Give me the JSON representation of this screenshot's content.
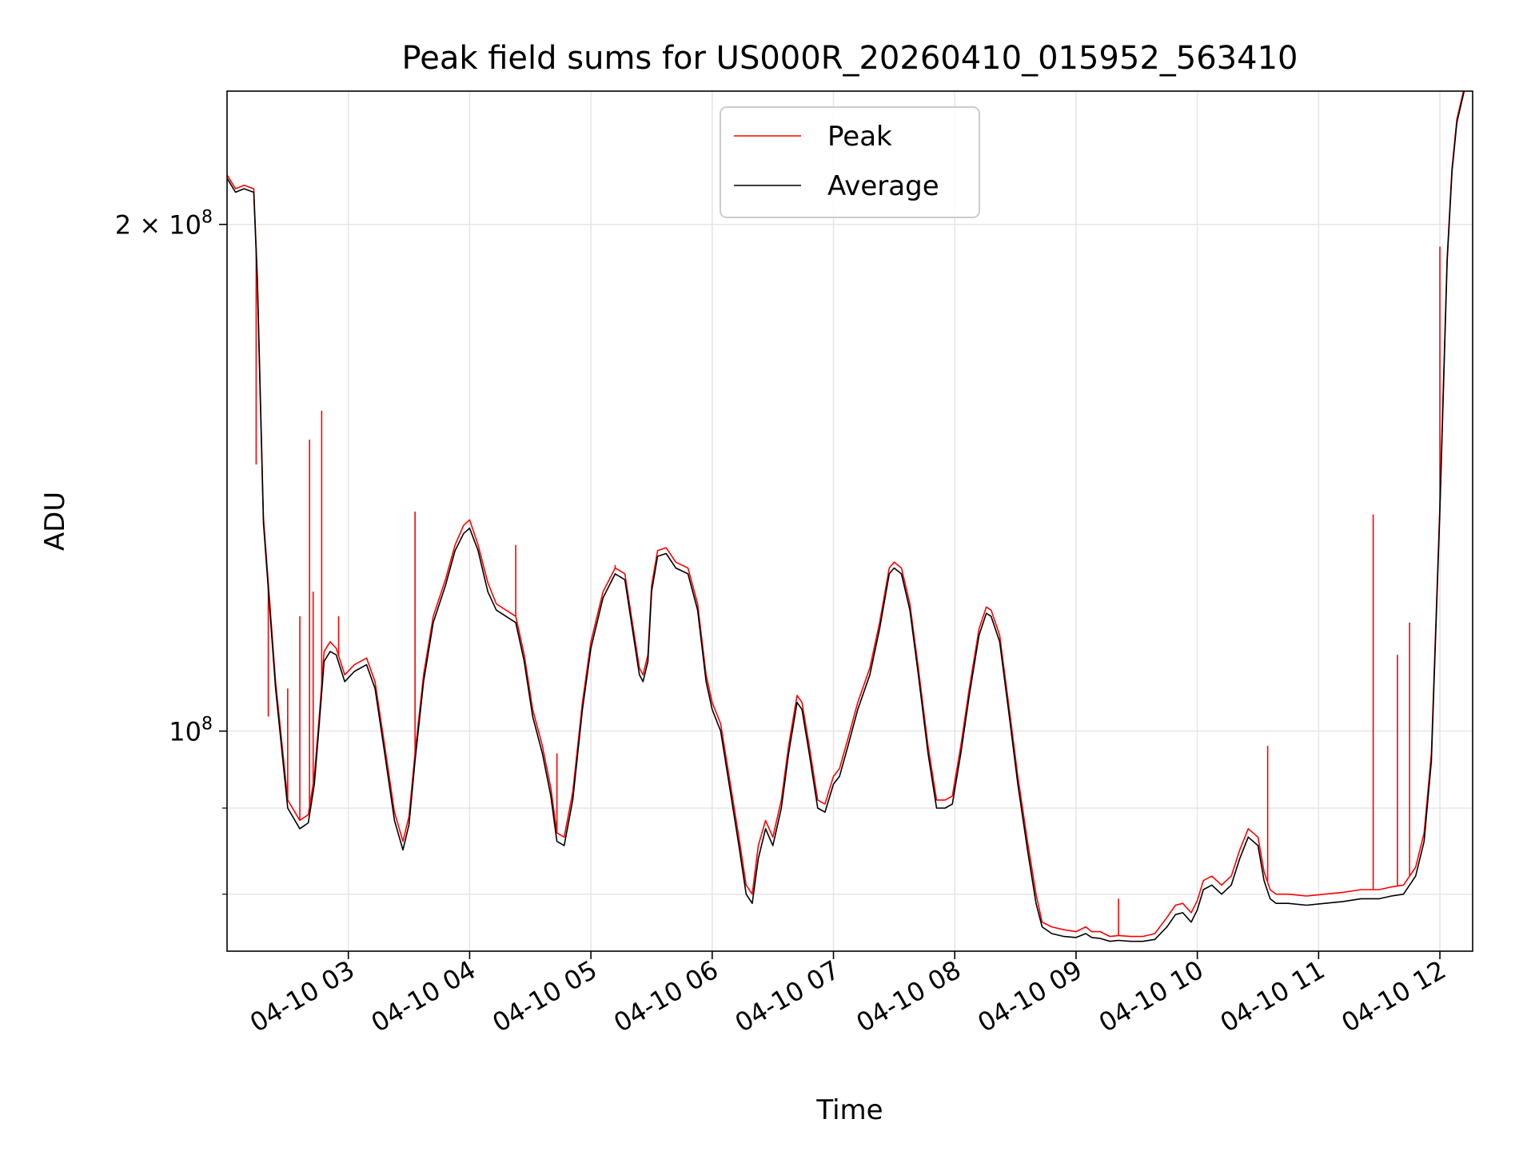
{
  "chart_data": {
    "type": "line",
    "title": "Peak field sums for US000R_20260410_015952_563410",
    "xlabel": "Time",
    "ylabel": "ADU",
    "yscale": "log",
    "grid": true,
    "legend_position": "top-center",
    "x_unit": "hours since 2026-04-10 00:00",
    "xlim": [
      2.0,
      12.27
    ],
    "ylim": [
      74000000,
      240000000
    ],
    "x_ticks": [
      {
        "value": 3,
        "label": "04-10 03"
      },
      {
        "value": 4,
        "label": "04-10 04"
      },
      {
        "value": 5,
        "label": "04-10 05"
      },
      {
        "value": 6,
        "label": "04-10 06"
      },
      {
        "value": 7,
        "label": "04-10 07"
      },
      {
        "value": 8,
        "label": "04-10 08"
      },
      {
        "value": 9,
        "label": "04-10 09"
      },
      {
        "value": 10,
        "label": "04-10 10"
      },
      {
        "value": 11,
        "label": "04-10 11"
      },
      {
        "value": 12,
        "label": "04-10 12"
      }
    ],
    "y_major_ticks": [
      {
        "value": 100000000,
        "label_base": "10",
        "label_exp": "8"
      },
      {
        "value": 200000000,
        "label_base": "2 × 10",
        "label_exp": "8"
      }
    ],
    "y_minor_ticks": [
      80000000,
      90000000
    ],
    "legend": {
      "peak_label": "Peak",
      "average_label": "Average"
    },
    "colors": {
      "peak": "#ff0000",
      "average": "#000000",
      "grid": "#e5e5e5"
    },
    "series": [
      {
        "name": "Average",
        "x": [
          2.0,
          2.07,
          2.14,
          2.22,
          2.25,
          2.3,
          2.4,
          2.5,
          2.6,
          2.67,
          2.72,
          2.76,
          2.8,
          2.85,
          2.9,
          2.97,
          3.05,
          3.15,
          3.22,
          3.3,
          3.38,
          3.45,
          3.5,
          3.55,
          3.62,
          3.7,
          3.8,
          3.88,
          3.95,
          4.0,
          4.07,
          4.15,
          4.22,
          4.3,
          4.38,
          4.45,
          4.52,
          4.6,
          4.67,
          4.72,
          4.78,
          4.85,
          4.93,
          5.0,
          5.1,
          5.2,
          5.28,
          5.35,
          5.4,
          5.43,
          5.47,
          5.5,
          5.55,
          5.62,
          5.7,
          5.8,
          5.88,
          5.95,
          6.0,
          6.07,
          6.15,
          6.22,
          6.28,
          6.33,
          6.38,
          6.44,
          6.5,
          6.57,
          6.63,
          6.7,
          6.74,
          6.8,
          6.87,
          6.93,
          7.0,
          7.05,
          7.12,
          7.2,
          7.3,
          7.38,
          7.46,
          7.5,
          7.56,
          7.63,
          7.7,
          7.78,
          7.85,
          7.92,
          7.98,
          8.05,
          8.12,
          8.2,
          8.26,
          8.3,
          8.37,
          8.45,
          8.52,
          8.6,
          8.67,
          8.72,
          8.8,
          8.9,
          9.0,
          9.08,
          9.13,
          9.2,
          9.28,
          9.35,
          9.45,
          9.55,
          9.65,
          9.75,
          9.82,
          9.88,
          9.95,
          10.0,
          10.05,
          10.12,
          10.2,
          10.28,
          10.35,
          10.42,
          10.5,
          10.55,
          10.6,
          10.65,
          10.75,
          10.9,
          11.05,
          11.2,
          11.35,
          11.5,
          11.6,
          11.7,
          11.8,
          11.87,
          11.93,
          12.0,
          12.06,
          12.1,
          12.14,
          12.2
        ],
        "y": [
          213000000,
          209000000,
          210000000,
          209000000,
          185000000,
          133000000,
          106000000,
          90000000,
          87500000,
          88200000,
          93000000,
          101000000,
          110000000,
          111500000,
          111000000,
          107000000,
          108500000,
          109500000,
          106000000,
          97000000,
          88500000,
          85000000,
          88000000,
          96000000,
          107000000,
          116000000,
          122000000,
          128000000,
          131000000,
          132000000,
          128000000,
          121000000,
          118000000,
          117000000,
          116000000,
          110000000,
          102000000,
          97000000,
          91500000,
          86000000,
          85500000,
          91000000,
          103000000,
          112000000,
          120000000,
          124000000,
          123000000,
          114000000,
          108000000,
          107000000,
          110000000,
          121000000,
          127000000,
          127500000,
          125000000,
          124000000,
          118000000,
          107000000,
          103000000,
          100000000,
          92000000,
          85500000,
          80000000,
          79000000,
          84000000,
          87500000,
          85500000,
          90000000,
          97000000,
          104000000,
          103000000,
          97000000,
          90000000,
          89500000,
          93000000,
          94000000,
          98000000,
          103000000,
          108000000,
          115000000,
          124000000,
          125000000,
          124000000,
          118000000,
          108000000,
          97000000,
          90000000,
          90000000,
          90500000,
          97000000,
          105000000,
          114000000,
          117500000,
          117000000,
          113000000,
          102000000,
          93000000,
          85000000,
          79000000,
          76500000,
          75800000,
          75500000,
          75400000,
          75800000,
          75400000,
          75300000,
          75000000,
          75100000,
          75000000,
          75000000,
          75200000,
          76500000,
          77800000,
          78000000,
          77000000,
          78300000,
          80500000,
          81000000,
          80000000,
          81000000,
          84000000,
          86500000,
          85500000,
          81500000,
          79500000,
          79000000,
          79000000,
          78800000,
          79000000,
          79200000,
          79500000,
          79500000,
          79800000,
          80000000,
          82000000,
          86000000,
          96000000,
          135000000,
          190000000,
          215000000,
          230000000,
          240000000
        ]
      },
      {
        "name": "Peak",
        "x": [
          2.0,
          2.07,
          2.14,
          2.22,
          2.25,
          2.3,
          2.4,
          2.5,
          2.6,
          2.67,
          2.72,
          2.76,
          2.8,
          2.85,
          2.9,
          2.97,
          3.05,
          3.15,
          3.22,
          3.3,
          3.38,
          3.45,
          3.5,
          3.55,
          3.62,
          3.7,
          3.8,
          3.88,
          3.95,
          4.0,
          4.07,
          4.15,
          4.22,
          4.3,
          4.38,
          4.45,
          4.52,
          4.6,
          4.67,
          4.72,
          4.78,
          4.85,
          4.93,
          5.0,
          5.1,
          5.2,
          5.28,
          5.35,
          5.4,
          5.43,
          5.47,
          5.5,
          5.55,
          5.62,
          5.7,
          5.8,
          5.88,
          5.95,
          6.0,
          6.07,
          6.15,
          6.22,
          6.28,
          6.33,
          6.38,
          6.44,
          6.5,
          6.57,
          6.63,
          6.7,
          6.74,
          6.8,
          6.87,
          6.93,
          7.0,
          7.05,
          7.12,
          7.2,
          7.3,
          7.38,
          7.46,
          7.5,
          7.56,
          7.63,
          7.7,
          7.78,
          7.85,
          7.92,
          7.98,
          8.05,
          8.12,
          8.2,
          8.26,
          8.3,
          8.37,
          8.45,
          8.52,
          8.6,
          8.67,
          8.72,
          8.8,
          8.9,
          9.0,
          9.08,
          9.13,
          9.2,
          9.28,
          9.35,
          9.45,
          9.55,
          9.65,
          9.75,
          9.82,
          9.88,
          9.95,
          10.0,
          10.05,
          10.12,
          10.2,
          10.28,
          10.35,
          10.42,
          10.5,
          10.55,
          10.6,
          10.65,
          10.75,
          10.9,
          11.05,
          11.2,
          11.35,
          11.5,
          11.6,
          11.7,
          11.8,
          11.87,
          11.93,
          12.0,
          12.06,
          12.1,
          12.14,
          12.2
        ],
        "y": [
          214000000,
          210000000,
          211000000,
          210000000,
          186000000,
          134000000,
          107000000,
          91000000,
          88500000,
          89200000,
          94000000,
          102000000,
          111500000,
          113000000,
          112000000,
          108000000,
          109500000,
          110500000,
          107000000,
          98000000,
          89500000,
          86000000,
          89000000,
          97000000,
          108000000,
          117000000,
          123000000,
          129000000,
          132500000,
          133500000,
          129000000,
          122500000,
          119000000,
          118000000,
          117000000,
          111000000,
          103000000,
          98000000,
          92500000,
          87000000,
          86500000,
          92000000,
          104000000,
          113000000,
          121000000,
          125000000,
          124000000,
          115000000,
          109000000,
          108000000,
          111000000,
          122000000,
          128000000,
          128500000,
          126000000,
          125000000,
          119000000,
          108000000,
          104000000,
          101000000,
          93000000,
          86500000,
          81000000,
          80000000,
          85500000,
          88500000,
          86500000,
          91000000,
          98000000,
          105000000,
          104000000,
          98000000,
          91000000,
          90500000,
          94000000,
          95000000,
          99000000,
          104000000,
          109000000,
          116000000,
          125000000,
          126000000,
          125000000,
          119000000,
          109000000,
          98000000,
          91000000,
          91000000,
          91500000,
          98000000,
          106000000,
          115000000,
          118500000,
          118000000,
          114000000,
          103000000,
          94000000,
          86000000,
          80000000,
          77000000,
          76500000,
          76200000,
          76000000,
          76500000,
          76000000,
          76000000,
          75500000,
          75600000,
          75500000,
          75500000,
          75800000,
          77500000,
          78800000,
          79000000,
          78000000,
          79300000,
          81500000,
          82000000,
          81000000,
          82000000,
          85000000,
          87500000,
          86500000,
          82500000,
          80500000,
          80000000,
          80000000,
          79800000,
          80000000,
          80200000,
          80500000,
          80500000,
          80800000,
          81000000,
          83000000,
          87000000,
          97000000,
          136000000,
          191000000,
          216000000,
          231000000,
          241000000
        ]
      }
    ],
    "peak_spikes": [
      {
        "x": 2.24,
        "y": 144000000
      },
      {
        "x": 2.34,
        "y": 102000000
      },
      {
        "x": 2.5,
        "y": 106000000
      },
      {
        "x": 2.6,
        "y": 117000000
      },
      {
        "x": 2.68,
        "y": 149000000
      },
      {
        "x": 2.71,
        "y": 121000000
      },
      {
        "x": 2.78,
        "y": 155000000
      },
      {
        "x": 2.92,
        "y": 117000000
      },
      {
        "x": 3.55,
        "y": 135000000
      },
      {
        "x": 4.38,
        "y": 129000000
      },
      {
        "x": 4.72,
        "y": 97000000
      },
      {
        "x": 5.2,
        "y": 125500000
      },
      {
        "x": 9.35,
        "y": 79500000
      },
      {
        "x": 10.58,
        "y": 98000000
      },
      {
        "x": 11.45,
        "y": 134500000
      },
      {
        "x": 11.65,
        "y": 111000000
      },
      {
        "x": 11.75,
        "y": 116000000
      },
      {
        "x": 12.0,
        "y": 194000000
      }
    ]
  }
}
